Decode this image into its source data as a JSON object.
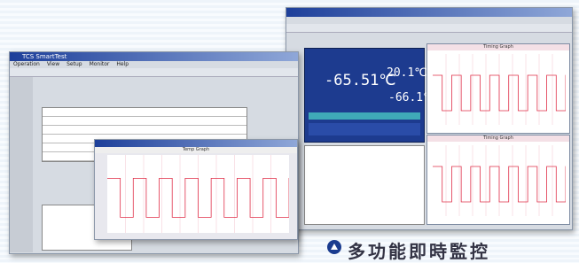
{
  "left_window": {
    "title": "TCS SmartTest",
    "menu": [
      "Operation",
      "View",
      "Setup",
      "Monitor",
      "Help"
    ],
    "chart_title": "Temp Graph"
  },
  "right_window": {
    "readings": [
      "-65.51℃",
      "20.1℃",
      "-66.1℃"
    ],
    "chart_titles": [
      "Timing Graph",
      "Timing Graph"
    ]
  },
  "caption": "多功能即時監控"
}
